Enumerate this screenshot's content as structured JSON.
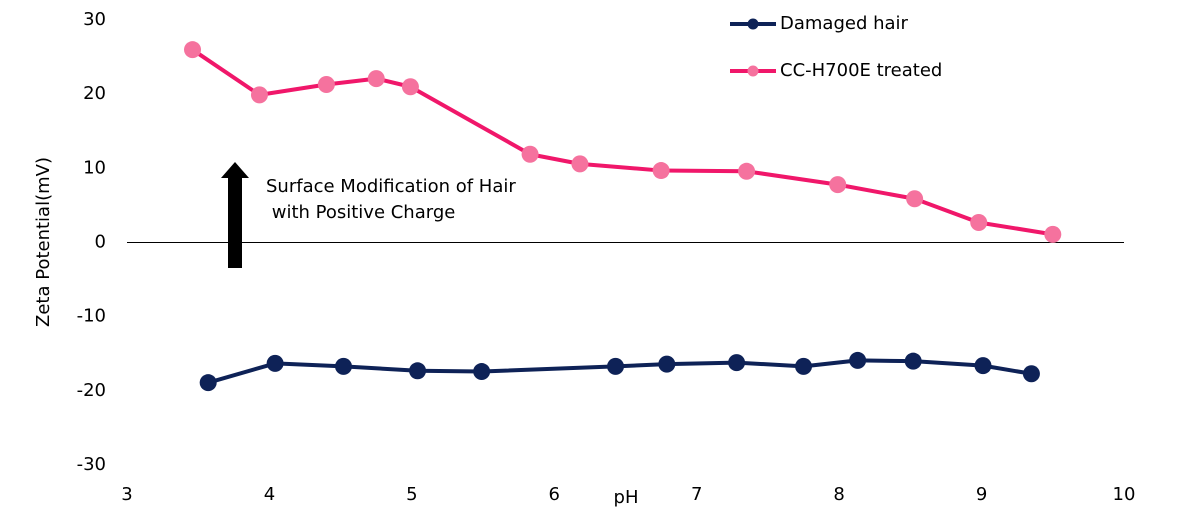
{
  "chart_data": {
    "type": "line",
    "x_label": "pH",
    "y_label": "Zeta Potential(mV)",
    "annotation": [
      "Surface Modification of Hair",
      " with Positive Charge"
    ],
    "series": [
      {
        "name": "Damaged hair",
        "color": "#0e2257",
        "x": [
          3.57,
          4.04,
          4.52,
          5.04,
          5.49,
          6.43,
          6.79,
          7.28,
          7.75,
          8.13,
          8.52,
          9.01,
          9.35
        ],
        "values": [
          -18.9,
          -16.3,
          -16.7,
          -17.3,
          -17.4,
          -16.7,
          -16.4,
          -16.2,
          -16.7,
          -15.9,
          -16.0,
          -16.6,
          -17.7
        ]
      },
      {
        "name": "CC-H700E treated",
        "color": "#f0176a",
        "marker_color": "#f5729e",
        "x": [
          3.46,
          3.93,
          4.4,
          4.75,
          4.99,
          5.83,
          6.18,
          6.75,
          7.35,
          7.99,
          8.53,
          8.98,
          9.5
        ],
        "values": [
          26.0,
          19.9,
          21.3,
          22.1,
          21.0,
          11.9,
          10.6,
          9.7,
          9.6,
          7.8,
          5.9,
          2.7,
          1.1
        ]
      }
    ],
    "xlim": [
      3,
      10
    ],
    "xticks": [
      3,
      4,
      5,
      6,
      7,
      8,
      9,
      10
    ],
    "ylim": [
      -30,
      30
    ],
    "yticks": [
      -30,
      -20,
      -10,
      0,
      10,
      20,
      30
    ],
    "grid": false,
    "legend": "upper right"
  }
}
